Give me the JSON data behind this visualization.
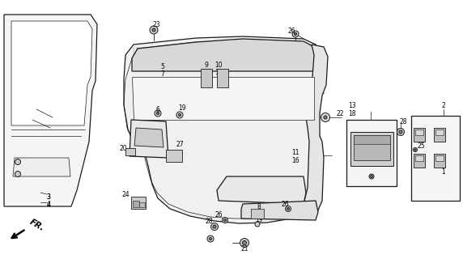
{
  "bg_color": "#ffffff",
  "lc": "#1a1a1a",
  "gray_light": "#e8e8e8",
  "gray_med": "#c8c8c8",
  "gray_dark": "#aaaaaa",
  "hatch_color": "#888888"
}
